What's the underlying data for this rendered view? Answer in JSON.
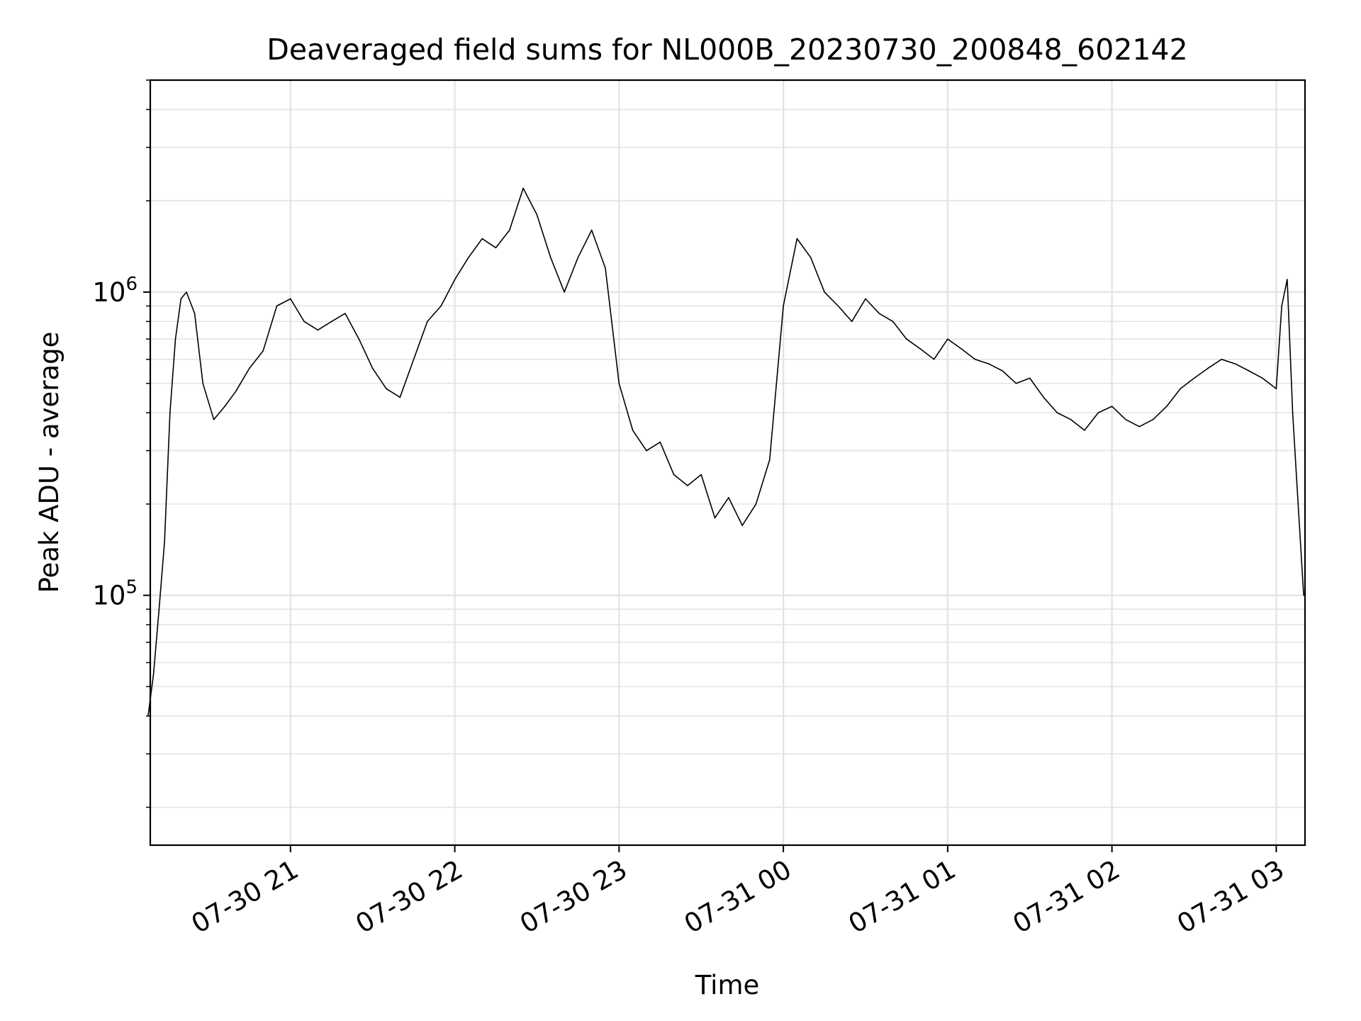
{
  "chart_data": {
    "type": "line",
    "title": "Deaveraged field sums for NL000B_20230730_200848_602142",
    "xlabel": "Time",
    "ylabel": "Peak ADU - average",
    "yscale": "log",
    "ylim": [
      15000,
      5000000
    ],
    "xlim": [
      "2023-07-30 20:08:48",
      "2023-07-31 03:10:30"
    ],
    "grid": true,
    "line_color": "#000000",
    "x_ticks": [
      {
        "value": "2023-07-30 21:00",
        "label": "07-30 21"
      },
      {
        "value": "2023-07-30 22:00",
        "label": "07-30 22"
      },
      {
        "value": "2023-07-30 23:00",
        "label": "07-30 23"
      },
      {
        "value": "2023-07-31 00:00",
        "label": "07-31 00"
      },
      {
        "value": "2023-07-31 01:00",
        "label": "07-31 01"
      },
      {
        "value": "2023-07-31 02:00",
        "label": "07-31 02"
      },
      {
        "value": "2023-07-31 03:00",
        "label": "07-31 03"
      }
    ],
    "y_ticks": [
      {
        "value": 100000,
        "base": "10",
        "exp": "5"
      },
      {
        "value": 1000000,
        "base": "10",
        "exp": "6"
      }
    ],
    "series": [
      {
        "x": [
          "2023-07-30 20:08",
          "2023-07-30 20:10",
          "2023-07-30 20:12",
          "2023-07-30 20:14",
          "2023-07-30 20:16",
          "2023-07-30 20:18",
          "2023-07-30 20:20",
          "2023-07-30 20:22",
          "2023-07-30 20:25",
          "2023-07-30 20:28",
          "2023-07-30 20:32",
          "2023-07-30 20:36",
          "2023-07-30 20:40",
          "2023-07-30 20:45",
          "2023-07-30 20:50",
          "2023-07-30 20:55",
          "2023-07-30 21:00",
          "2023-07-30 21:05",
          "2023-07-30 21:10",
          "2023-07-30 21:15",
          "2023-07-30 21:20",
          "2023-07-30 21:25",
          "2023-07-30 21:30",
          "2023-07-30 21:35",
          "2023-07-30 21:40",
          "2023-07-30 21:45",
          "2023-07-30 21:50",
          "2023-07-30 21:55",
          "2023-07-30 22:00",
          "2023-07-30 22:05",
          "2023-07-30 22:10",
          "2023-07-30 22:15",
          "2023-07-30 22:20",
          "2023-07-30 22:25",
          "2023-07-30 22:30",
          "2023-07-30 22:35",
          "2023-07-30 22:40",
          "2023-07-30 22:45",
          "2023-07-30 22:50",
          "2023-07-30 22:55",
          "2023-07-30 23:00",
          "2023-07-30 23:05",
          "2023-07-30 23:10",
          "2023-07-30 23:15",
          "2023-07-30 23:20",
          "2023-07-30 23:25",
          "2023-07-30 23:30",
          "2023-07-30 23:35",
          "2023-07-30 23:40",
          "2023-07-30 23:45",
          "2023-07-30 23:50",
          "2023-07-30 23:55",
          "2023-07-31 00:00",
          "2023-07-31 00:05",
          "2023-07-31 00:10",
          "2023-07-31 00:15",
          "2023-07-31 00:20",
          "2023-07-31 00:25",
          "2023-07-31 00:30",
          "2023-07-31 00:35",
          "2023-07-31 00:40",
          "2023-07-31 00:45",
          "2023-07-31 00:50",
          "2023-07-31 00:55",
          "2023-07-31 01:00",
          "2023-07-31 01:05",
          "2023-07-31 01:10",
          "2023-07-31 01:15",
          "2023-07-31 01:20",
          "2023-07-31 01:25",
          "2023-07-31 01:30",
          "2023-07-31 01:35",
          "2023-07-31 01:40",
          "2023-07-31 01:45",
          "2023-07-31 01:50",
          "2023-07-31 01:55",
          "2023-07-31 02:00",
          "2023-07-31 02:05",
          "2023-07-31 02:10",
          "2023-07-31 02:15",
          "2023-07-31 02:20",
          "2023-07-31 02:25",
          "2023-07-31 02:30",
          "2023-07-31 02:35",
          "2023-07-31 02:40",
          "2023-07-31 02:45",
          "2023-07-31 02:50",
          "2023-07-31 02:55",
          "2023-07-31 03:00",
          "2023-07-31 03:02",
          "2023-07-31 03:04",
          "2023-07-31 03:06",
          "2023-07-31 03:08",
          "2023-07-31 03:10"
        ],
        "y": [
          40000,
          55000,
          90000,
          150000,
          400000,
          700000,
          950000,
          1000000,
          850000,
          500000,
          380000,
          420000,
          470000,
          560000,
          640000,
          900000,
          950000,
          800000,
          750000,
          800000,
          850000,
          700000,
          560000,
          480000,
          450000,
          600000,
          800000,
          900000,
          1100000,
          1300000,
          1500000,
          1400000,
          1600000,
          2200000,
          1800000,
          1300000,
          1000000,
          1300000,
          1600000,
          1200000,
          500000,
          350000,
          300000,
          320000,
          250000,
          230000,
          250000,
          180000,
          210000,
          170000,
          200000,
          280000,
          900000,
          1500000,
          1300000,
          1000000,
          900000,
          800000,
          950000,
          850000,
          800000,
          700000,
          650000,
          600000,
          700000,
          650000,
          600000,
          580000,
          550000,
          500000,
          520000,
          450000,
          400000,
          380000,
          350000,
          400000,
          420000,
          380000,
          360000,
          380000,
          420000,
          480000,
          520000,
          560000,
          600000,
          580000,
          550000,
          520000,
          480000,
          900000,
          1100000,
          400000,
          200000,
          100000
        ]
      }
    ]
  }
}
